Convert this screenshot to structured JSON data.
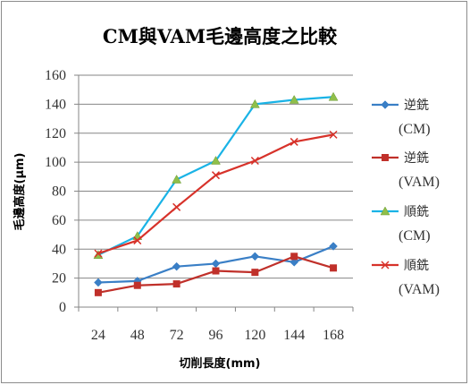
{
  "chart_data": {
    "type": "line",
    "title": "CM與VAM毛邊高度之比較",
    "xlabel": "切削長度(mm)",
    "ylabel": "毛邊高度(μm)",
    "categories": [
      "24",
      "48",
      "72",
      "96",
      "120",
      "144",
      "168"
    ],
    "ylim": [
      0,
      160
    ],
    "yticks": [
      0,
      20,
      40,
      60,
      80,
      100,
      120,
      140,
      160
    ],
    "grid": "horizontal",
    "legend_position": "right",
    "series": [
      {
        "name": "逆銑",
        "sub": "(CM)",
        "color": "#3a7fc6",
        "marker": "diamond",
        "values": [
          17,
          18,
          28,
          30,
          35,
          31,
          42
        ]
      },
      {
        "name": "逆銑",
        "sub": "(VAM)",
        "color": "#c0302a",
        "marker": "square",
        "values": [
          10,
          15,
          16,
          25,
          24,
          35,
          27
        ]
      },
      {
        "name": "順銑",
        "sub": "(CM)",
        "color": "#1ab3e6",
        "marker": "triangle",
        "marker_color": "#8fbf4a",
        "values": [
          36,
          49,
          88,
          101,
          140,
          143,
          145
        ]
      },
      {
        "name": "順銑",
        "sub": "(VAM)",
        "color": "#d7322a",
        "marker": "x",
        "values": [
          37,
          46,
          69,
          91,
          101,
          114,
          119
        ]
      }
    ]
  }
}
